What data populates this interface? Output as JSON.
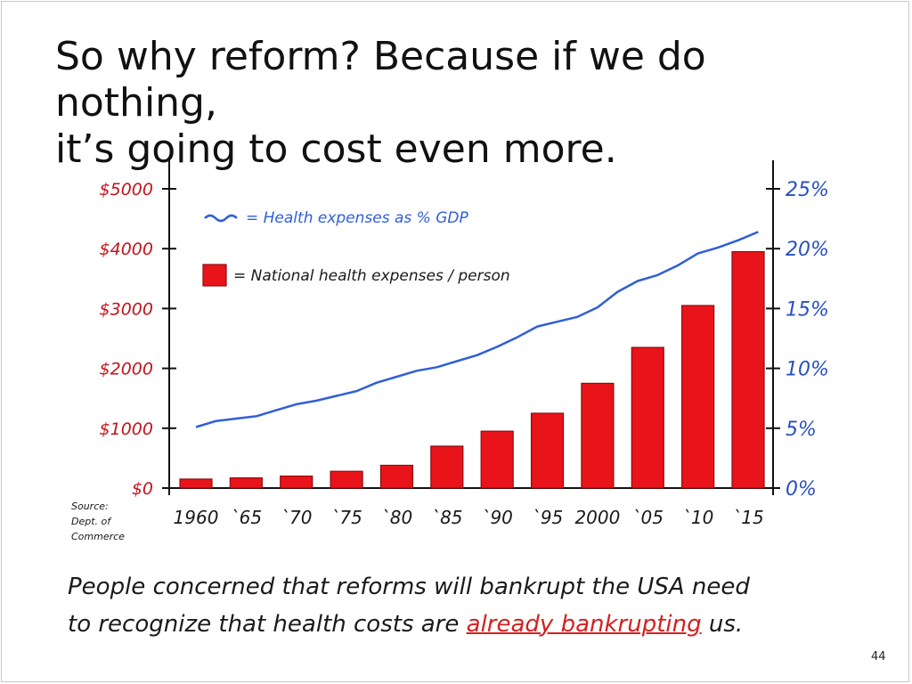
{
  "slide": {
    "title_line1": "So why reform? Because if we do nothing,",
    "title_line2": "it’s going to cost even more.",
    "caption_line1": "People concerned that reforms will bankrupt the USA need",
    "caption_line2_pre": "to recognize that health costs are ",
    "caption_line2_highlight": "already bankrupting",
    "caption_line2_post": " us.",
    "page_number": "44",
    "source_note": [
      "Source:",
      "Dept. of",
      "Commerce"
    ]
  },
  "colors": {
    "bars": "#e8141a",
    "line": "#2f5fd9",
    "left_axis_labels": "#c4121a",
    "right_axis_labels": "#2a4fc0",
    "highlight": "#d42020"
  },
  "chart_data": {
    "type": "bar",
    "categories": [
      "1960",
      "`65",
      "`70",
      "`75",
      "`80",
      "`85",
      "`90",
      "`95",
      "2000",
      "`05",
      "`10",
      "`15"
    ],
    "series": [
      {
        "name": "= National health expenses / person",
        "type": "bar",
        "axis": "left",
        "values": [
          150,
          170,
          200,
          280,
          380,
          700,
          950,
          1250,
          1750,
          2350,
          3050,
          3950
        ]
      },
      {
        "name": "= Health expenses as % GDP",
        "type": "line",
        "axis": "right",
        "x": [
          1960,
          1962,
          1964,
          1966,
          1968,
          1970,
          1972,
          1974,
          1976,
          1978,
          1980,
          1982,
          1984,
          1986,
          1988,
          1990,
          1992,
          1994,
          1996,
          1998,
          2000,
          2002,
          2004,
          2006,
          2008,
          2010,
          2012,
          2014,
          2016
        ],
        "values": [
          5.1,
          5.6,
          5.8,
          6.0,
          6.5,
          7.0,
          7.3,
          7.7,
          8.1,
          8.8,
          9.3,
          9.8,
          10.1,
          10.6,
          11.1,
          11.8,
          12.6,
          13.5,
          13.9,
          14.3,
          15.1,
          16.4,
          17.3,
          17.8,
          18.6,
          19.6,
          20.1,
          20.7,
          21.4
        ]
      }
    ],
    "left_axis_ticks": [
      "$5000",
      "$4000",
      "$3000",
      "$2000",
      "$1000",
      "$0"
    ],
    "right_axis_ticks": [
      "25%",
      "20%",
      "15%",
      "10%",
      "5%",
      "0%"
    ],
    "y_left_lim": [
      0,
      5000
    ],
    "y_right_lim": [
      0,
      25
    ],
    "legend_placement": "top-left",
    "grid": false,
    "xlabel": "",
    "ylabel": ""
  }
}
